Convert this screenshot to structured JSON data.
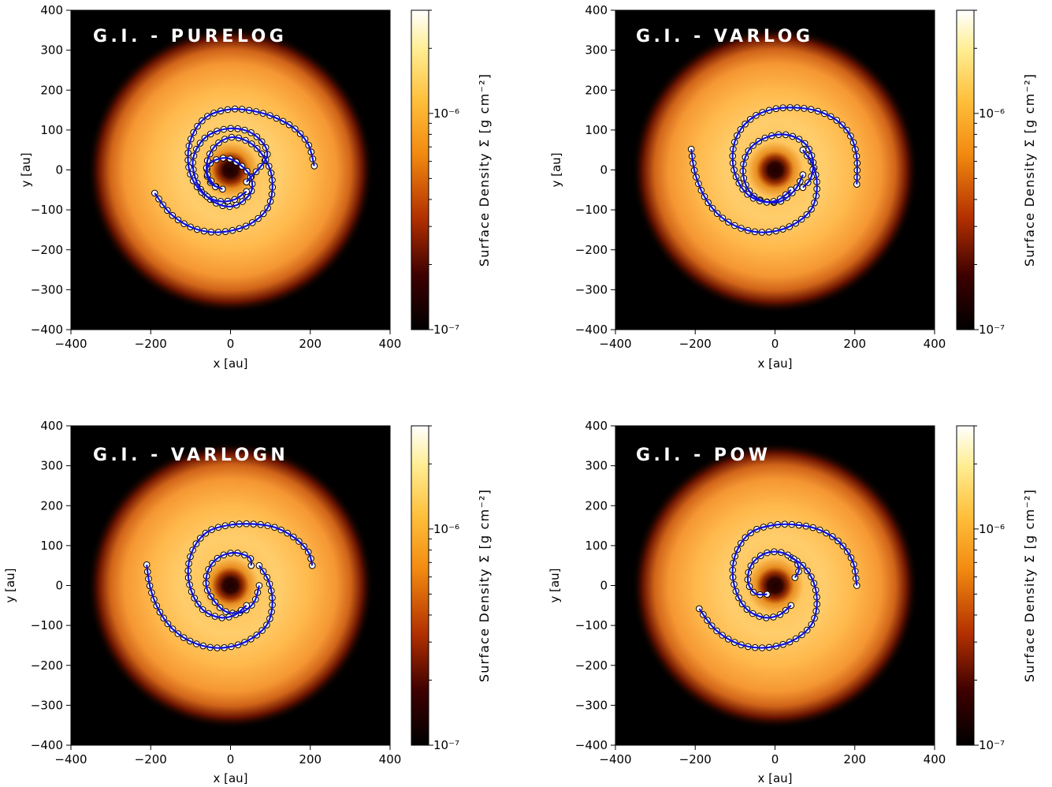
{
  "chart_data": [
    {
      "type": "heatmap",
      "title": "G.I. - PURELOG",
      "xlabel": "x [au]",
      "ylabel": "y [au]",
      "xlim": [
        -400,
        400
      ],
      "ylim": [
        -400,
        400
      ],
      "xticks": [
        "−400",
        "−200",
        "0",
        "200",
        "400"
      ],
      "yticks": [
        "400",
        "300",
        "200",
        "100",
        "0",
        "−100",
        "−200",
        "−300",
        "−400"
      ],
      "colorbar": {
        "label": "Surface Density Σ [g cm⁻²]",
        "scale": "log",
        "range": [
          1e-07,
          3e-06
        ],
        "ticks": [
          "10⁻⁶",
          "10⁻⁷"
        ],
        "colormap": "afmhot"
      },
      "fit_arm_1": {
        "x": [
          40,
          92,
          60,
          0,
          -62,
          -94,
          -80,
          -38,
          10,
          52,
          45,
          -2,
          -44,
          -60,
          -48,
          -20
        ],
        "y": [
          -30,
          36,
          88,
          104,
          82,
          26,
          -40,
          -82,
          -90,
          -54,
          -8,
          28,
          22,
          -4,
          -34,
          -48
        ]
      },
      "fit_arm_2": {
        "x": [
          -190,
          -150,
          -95,
          -30,
          40,
          90,
          105,
          96,
          60,
          10,
          -32,
          -56,
          -58,
          -38
        ],
        "y": [
          -58,
          -110,
          -145,
          -156,
          -140,
          -100,
          -46,
          10,
          60,
          82,
          66,
          30,
          -10,
          -42
        ]
      },
      "fit_arm_3": {
        "x": [
          210,
          195,
          160,
          110,
          55,
          0,
          -55,
          -90,
          -106,
          -100,
          -70,
          -30,
          10,
          40
        ],
        "y": [
          10,
          64,
          104,
          132,
          148,
          152,
          136,
          98,
          46,
          -12,
          -58,
          -78,
          -74,
          -54
        ]
      }
    },
    {
      "type": "heatmap",
      "title": "G.I. - VARLOG",
      "xlabel": "x [au]",
      "ylabel": "y [au]",
      "xlim": [
        -400,
        400
      ],
      "ylim": [
        -400,
        400
      ],
      "xticks": [
        "−400",
        "−200",
        "0",
        "200",
        "400"
      ],
      "yticks": [
        "400",
        "300",
        "200",
        "100",
        "0",
        "−100",
        "−200",
        "−300",
        "−400"
      ],
      "colorbar": {
        "label": "Surface Density Σ [g cm⁻²]",
        "scale": "log",
        "range": [
          1e-07,
          3e-06
        ],
        "ticks": [
          "10⁻⁶",
          "10⁻⁷"
        ],
        "colormap": "afmhot"
      },
      "fit_arm_1": {
        "x": [
          -210,
          -200,
          -175,
          -135,
          -80,
          -20,
          40,
          90,
          105,
          96,
          70
        ],
        "y": [
          52,
          -10,
          -70,
          -118,
          -148,
          -156,
          -140,
          -100,
          -46,
          10,
          50
        ]
      },
      "fit_arm_2": {
        "x": [
          70,
          50,
          10,
          -40,
          -72,
          -80,
          -62,
          -20,
          30,
          75,
          95,
          90,
          70
        ],
        "y": [
          -12,
          -50,
          -80,
          -74,
          -40,
          8,
          54,
          82,
          88,
          66,
          24,
          -20,
          -44
        ]
      },
      "fit_arm_3": {
        "x": [
          205,
          205,
          190,
          155,
          105,
          50,
          -5,
          -55,
          -92,
          -106,
          -98,
          -70,
          -28,
          10,
          40
        ],
        "y": [
          -36,
          30,
          84,
          124,
          148,
          156,
          152,
          132,
          92,
          40,
          -16,
          -60,
          -80,
          -74,
          -50
        ]
      }
    },
    {
      "type": "heatmap",
      "title": "G.I. - VARLOGN",
      "xlabel": "x [au]",
      "ylabel": "y [au]",
      "xlim": [
        -400,
        400
      ],
      "ylim": [
        -400,
        400
      ],
      "xticks": [
        "−400",
        "−200",
        "0",
        "200",
        "400"
      ],
      "yticks": [
        "400",
        "300",
        "200",
        "100",
        "0",
        "−100",
        "−200",
        "−300",
        "−400"
      ],
      "colorbar": {
        "label": "Surface Density Σ [g cm⁻²]",
        "scale": "log",
        "range": [
          1e-07,
          3e-06
        ],
        "ticks": [
          "10⁻⁶",
          "10⁻⁷"
        ],
        "colormap": "afmhot"
      },
      "fit_arm_1": {
        "x": [
          -210,
          -200,
          -175,
          -135,
          -80,
          -20,
          40,
          90,
          105,
          96,
          72
        ],
        "y": [
          52,
          -10,
          -70,
          -118,
          -148,
          -156,
          -140,
          -100,
          -46,
          10,
          50
        ]
      },
      "fit_arm_2": {
        "x": [
          72,
          60,
          30,
          -10,
          -40,
          -60,
          -56,
          -30,
          10,
          48,
          52
        ],
        "y": [
          0,
          -40,
          -66,
          -66,
          -40,
          -4,
          38,
          70,
          82,
          70,
          50
        ]
      },
      "fit_arm_3": {
        "x": [
          205,
          195,
          160,
          110,
          55,
          0,
          -55,
          -90,
          -106,
          -98,
          -70,
          -28,
          10,
          40
        ],
        "y": [
          50,
          84,
          120,
          146,
          154,
          152,
          136,
          98,
          44,
          -14,
          -60,
          -80,
          -74,
          -50
        ]
      }
    },
    {
      "type": "heatmap",
      "title": "G.I. - POW",
      "xlabel": "x [au]",
      "ylabel": "y [au]",
      "xlim": [
        -400,
        400
      ],
      "ylim": [
        -400,
        400
      ],
      "xticks": [
        "−400",
        "−200",
        "0",
        "200",
        "400"
      ],
      "yticks": [
        "400",
        "300",
        "200",
        "100",
        "0",
        "−100",
        "−200",
        "−300",
        "−400"
      ],
      "colorbar": {
        "label": "Surface Density Σ [g cm⁻²]",
        "scale": "log",
        "range": [
          1e-07,
          3e-06
        ],
        "ticks": [
          "10⁻⁶",
          "10⁻⁷"
        ],
        "colormap": "afmhot"
      },
      "fit_arm_1": {
        "x": [
          -190,
          -150,
          -95,
          -30,
          40,
          90,
          105,
          96,
          70,
          40
        ],
        "y": [
          -58,
          -110,
          -145,
          -156,
          -140,
          -100,
          -46,
          10,
          50,
          70
        ]
      },
      "fit_arm_2": {
        "x": [
          -20,
          -50,
          -68,
          -60,
          -30,
          10,
          48,
          60,
          50
        ],
        "y": [
          -22,
          -20,
          10,
          50,
          78,
          84,
          66,
          40,
          20
        ]
      },
      "fit_arm_3": {
        "x": [
          205,
          195,
          160,
          110,
          55,
          0,
          -55,
          -90,
          -106,
          -98,
          -70,
          -28,
          10,
          40
        ],
        "y": [
          0,
          60,
          110,
          140,
          152,
          152,
          136,
          98,
          44,
          -14,
          -60,
          -80,
          -74,
          -50
        ]
      }
    }
  ]
}
